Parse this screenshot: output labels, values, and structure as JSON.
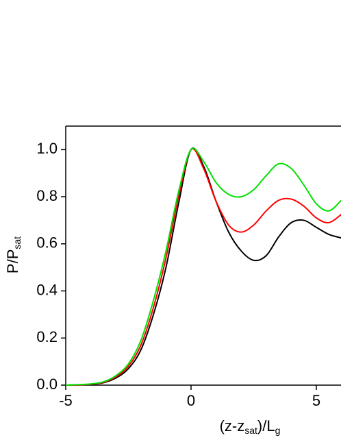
{
  "chart_data": {
    "type": "line",
    "xlabel_parts": [
      "(z-z",
      "sat",
      ")/L",
      "g"
    ],
    "ylabel_parts": [
      "P/P",
      "sat"
    ],
    "x": [
      -5,
      -4.5,
      -4,
      -3.5,
      -3,
      -2.5,
      -2,
      -1.5,
      -1,
      -0.5,
      0,
      0.5,
      1,
      1.5,
      2,
      2.5,
      3,
      3.5,
      4,
      4.5,
      5,
      5.5,
      6
    ],
    "series": [
      {
        "color": "#000000",
        "values": [
          0,
          0.001,
          0.003,
          0.01,
          0.03,
          0.07,
          0.15,
          0.3,
          0.5,
          0.77,
          1.0,
          0.93,
          0.78,
          0.65,
          0.57,
          0.53,
          0.55,
          0.63,
          0.69,
          0.7,
          0.67,
          0.64,
          0.625
        ]
      },
      {
        "color": "#ff0000",
        "values": [
          0,
          0.001,
          0.004,
          0.012,
          0.035,
          0.08,
          0.17,
          0.33,
          0.54,
          0.8,
          1.0,
          0.92,
          0.78,
          0.68,
          0.65,
          0.68,
          0.74,
          0.785,
          0.79,
          0.76,
          0.71,
          0.69,
          0.725
        ]
      },
      {
        "color": "#00e000",
        "values": [
          0,
          0.002,
          0.005,
          0.014,
          0.04,
          0.09,
          0.19,
          0.36,
          0.57,
          0.82,
          1.0,
          0.95,
          0.86,
          0.81,
          0.8,
          0.83,
          0.89,
          0.94,
          0.92,
          0.85,
          0.77,
          0.74,
          0.785
        ]
      }
    ],
    "xlim": [
      -5,
      6
    ],
    "ylim": [
      0,
      1.1
    ],
    "xticks": [
      -5,
      0,
      5
    ],
    "yticks": [
      {
        "value": 0,
        "label": "0.0"
      },
      0.2,
      0.4,
      0.6,
      0.8,
      {
        "value": 1,
        "label": "1.0"
      }
    ]
  }
}
